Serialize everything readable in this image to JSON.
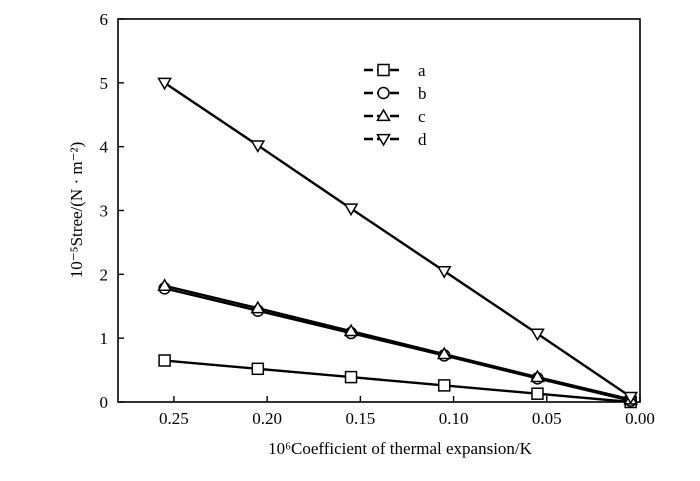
{
  "chart_data": {
    "type": "line",
    "xlabel": "10⁶Coefficient of thermal expansion/K",
    "ylabel": "10⁻⁵Stree/(N · m⁻²)",
    "xlim": [
      -0.28,
      0.0
    ],
    "ylim": [
      0,
      6
    ],
    "x_ticks": [
      -0.25,
      -0.2,
      -0.15,
      -0.1,
      -0.05,
      0.0
    ],
    "x_tick_labels": [
      "0.25",
      "0.20",
      "0.15",
      "0.10",
      "0.05",
      "0.00"
    ],
    "y_ticks": [
      0,
      1,
      2,
      3,
      4,
      5,
      6
    ],
    "y_tick_labels": [
      "0",
      "1",
      "2",
      "3",
      "4",
      "5",
      "6"
    ],
    "grid": false,
    "legend_position": "top-center",
    "series": [
      {
        "name": "a",
        "marker": "square",
        "x": [
          -0.255,
          -0.205,
          -0.155,
          -0.105,
          -0.055,
          -0.005
        ],
        "values": [
          0.65,
          0.52,
          0.39,
          0.26,
          0.13,
          0.0
        ]
      },
      {
        "name": "b",
        "marker": "circle",
        "x": [
          -0.255,
          -0.205,
          -0.155,
          -0.105,
          -0.055,
          -0.005
        ],
        "values": [
          1.78,
          1.43,
          1.08,
          0.73,
          0.37,
          0.02
        ]
      },
      {
        "name": "c",
        "marker": "triangle-up",
        "x": [
          -0.255,
          -0.205,
          -0.155,
          -0.105,
          -0.055,
          -0.005
        ],
        "values": [
          1.82,
          1.47,
          1.11,
          0.75,
          0.39,
          0.04
        ]
      },
      {
        "name": "d",
        "marker": "triangle-down",
        "x": [
          -0.255,
          -0.205,
          -0.155,
          -0.105,
          -0.055,
          -0.005
        ],
        "values": [
          5.0,
          4.02,
          3.03,
          2.05,
          1.07,
          0.08
        ]
      }
    ]
  }
}
